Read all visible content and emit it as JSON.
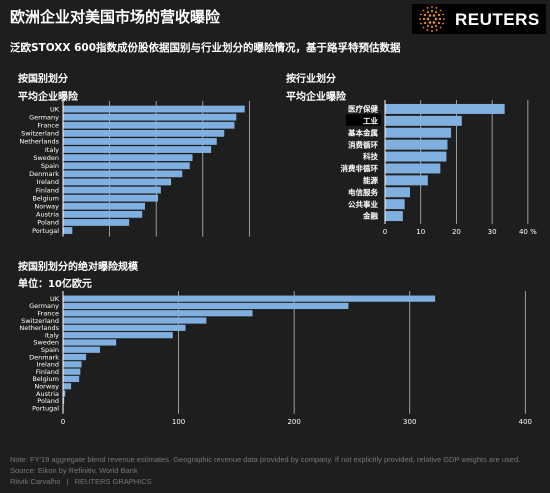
{
  "header": {
    "title": "欧洲企业对美国市场的营收曝险",
    "subtitle": "泛欧STOXX 600指数成份股依据国别与行业划分的曝险情况，基于路孚特预估数据",
    "logo_text": "REUTERS"
  },
  "colors": {
    "background": "#1e1e1e",
    "bar": "#7fb0df",
    "highlight_bg": "#000000",
    "gridline": "#bbbbbb"
  },
  "sections": {
    "country": {
      "label": "按国别划分",
      "sublabel": "平均企业曝险"
    },
    "sector": {
      "label": "按行业划分",
      "sublabel": "平均企业曝险"
    },
    "absolute": {
      "label": "按国别划分的绝对曝险规模",
      "sublabel": "单位：10亿欧元"
    }
  },
  "chart_data": [
    {
      "type": "bar",
      "orientation": "horizontal",
      "categories": [
        "UK",
        "Germany",
        "France",
        "Switzerland",
        "Netherlands",
        "Italy",
        "Sweden",
        "Spain",
        "Denmark",
        "Ireland",
        "Finland",
        "Belgium",
        "Norway",
        "Austria",
        "Poland",
        "Portugal"
      ],
      "values": [
        19.5,
        18.6,
        18.4,
        17.3,
        16.5,
        15.9,
        13.9,
        13.6,
        12.8,
        11.6,
        10.5,
        10.2,
        8.8,
        8.5,
        7.1,
        1.0
      ],
      "xlim": [
        0,
        22
      ],
      "xticks": [
        0,
        5,
        10,
        15,
        20
      ],
      "xtick_labels": [
        "0",
        "5",
        "10",
        "15",
        "20 %"
      ],
      "grid": true
    },
    {
      "type": "bar",
      "orientation": "horizontal",
      "categories": [
        "医疗保健",
        "工业",
        "基本金属",
        "消费循环",
        "科技",
        "消费非循环",
        "能源",
        "电信服务",
        "公共事业",
        "金融"
      ],
      "values": [
        33.5,
        21.5,
        18.5,
        17.5,
        17.2,
        15.5,
        12,
        7,
        5.5,
        5
      ],
      "highlighted": [
        "工业"
      ],
      "xlim": [
        0,
        42
      ],
      "xticks": [
        0,
        10,
        20,
        30,
        40
      ],
      "xtick_labels": [
        "0",
        "10",
        "20",
        "30",
        "40 %"
      ],
      "grid": true
    },
    {
      "type": "bar",
      "orientation": "horizontal",
      "categories": [
        "UK",
        "Germany",
        "France",
        "Switzerland",
        "Netherlands",
        "Italy",
        "Sweden",
        "Spain",
        "Denmark",
        "Ireland",
        "Finland",
        "Belgium",
        "Norway",
        "Austria",
        "Poland",
        "Portugal"
      ],
      "values": [
        322,
        247,
        164,
        124,
        106,
        95,
        46,
        32,
        20,
        16,
        15,
        14,
        7,
        2,
        1,
        0.5
      ],
      "xlim": [
        0,
        430
      ],
      "xticks": [
        0,
        100,
        200,
        300,
        400
      ],
      "xtick_labels": [
        "0",
        "100",
        "200",
        "300",
        "400"
      ],
      "grid": true
    }
  ],
  "footer": {
    "note": "Note: FY'19 aggregate blend revenue estimates. Geographic revenue data provided by company. If not explicitly provided, relative GDP weights are used.",
    "source": "Source: Eikon by Refinitiv, World Bank",
    "credit": "Ritvik Carvalho",
    "credit_org": "REUTERS GRAPHICS"
  }
}
